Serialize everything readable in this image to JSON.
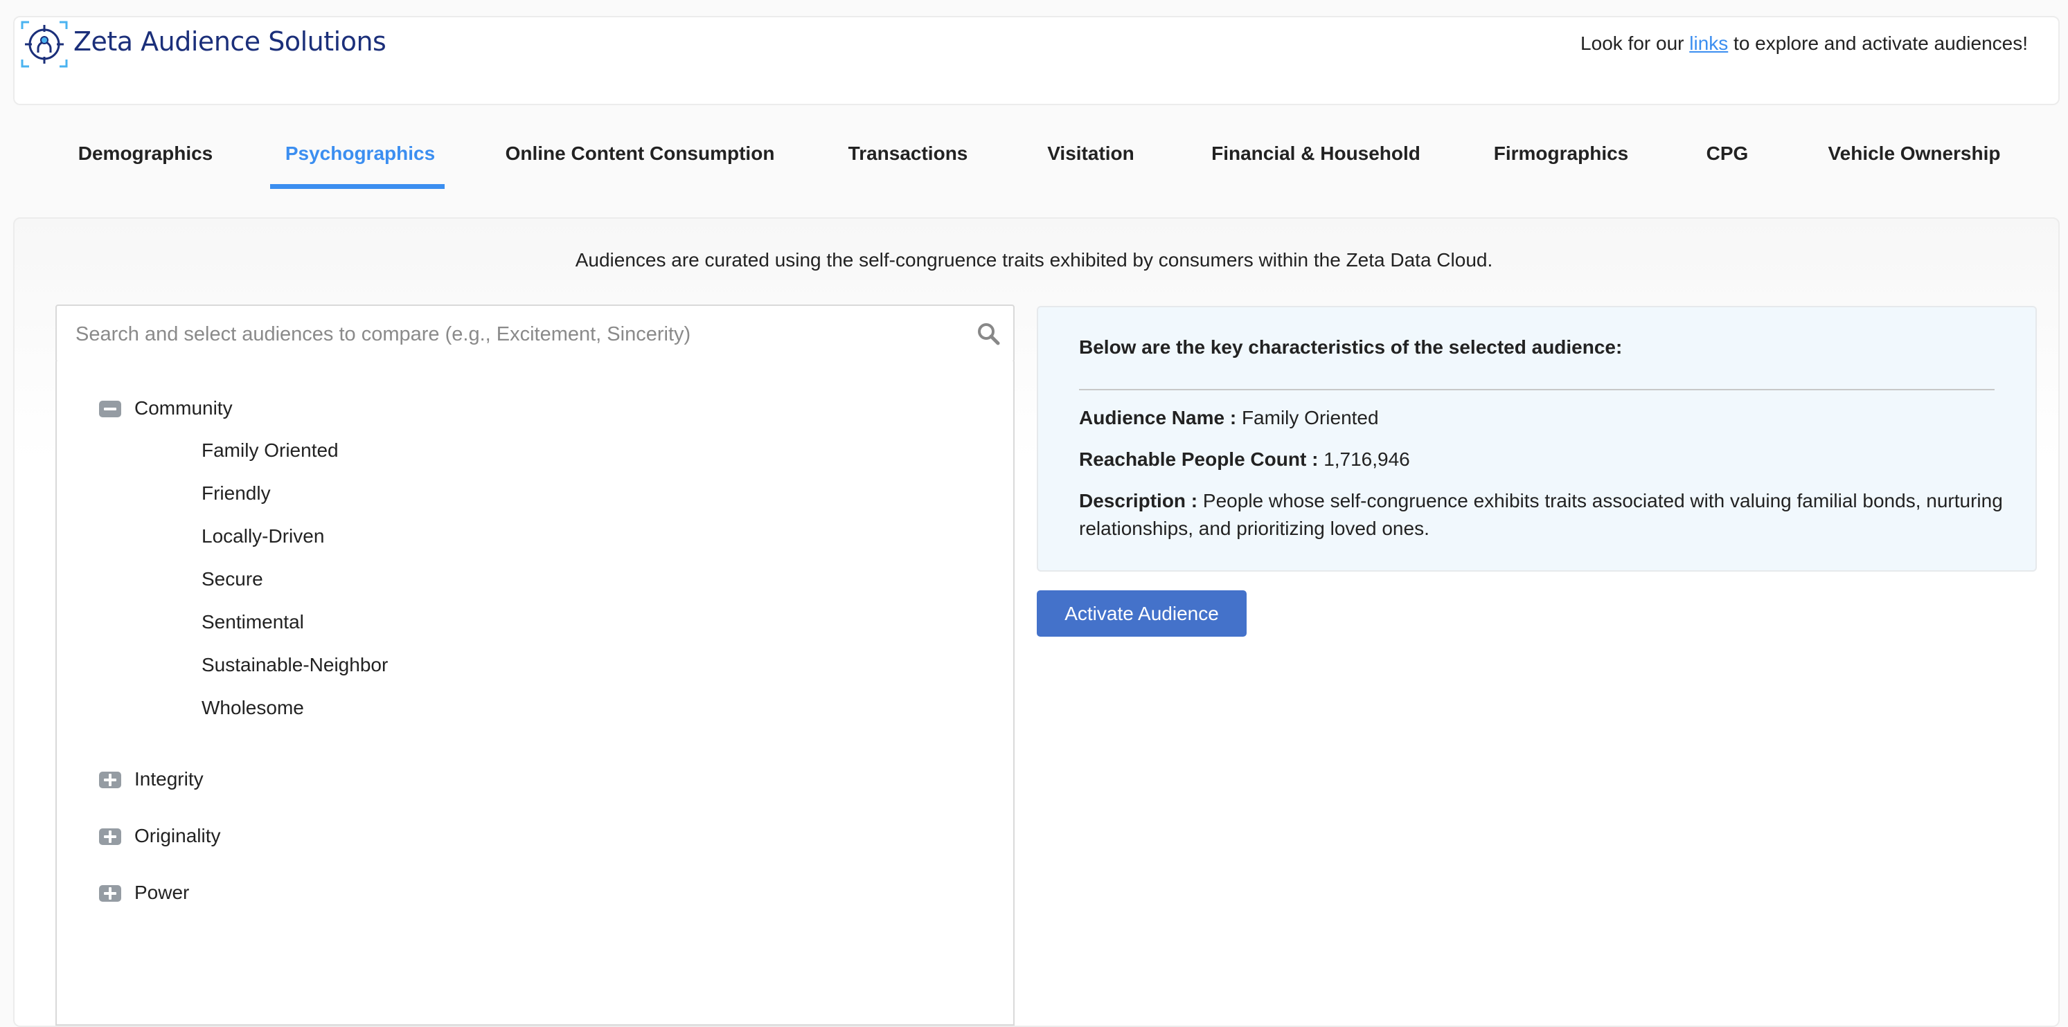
{
  "header": {
    "brand": "Zeta Audience Solutions",
    "tagline_prefix": "Look for our ",
    "tagline_link": "links",
    "tagline_suffix": " to explore and activate audiences!"
  },
  "tabs": [
    {
      "label": "Demographics",
      "active": false
    },
    {
      "label": "Psychographics",
      "active": true
    },
    {
      "label": "Online Content Consumption",
      "active": false
    },
    {
      "label": "Transactions",
      "active": false
    },
    {
      "label": "Visitation",
      "active": false
    },
    {
      "label": "Financial & Household",
      "active": false
    },
    {
      "label": "Firmographics",
      "active": false
    },
    {
      "label": "CPG",
      "active": false
    },
    {
      "label": "Vehicle Ownership",
      "active": false
    }
  ],
  "intro": "Audiences are curated using the self-congruence traits exhibited by consumers within the Zeta Data Cloud.",
  "search": {
    "placeholder": "Search and select audiences to compare (e.g., Excitement, Sincerity)",
    "value": ""
  },
  "tree": [
    {
      "label": "Community",
      "expanded": true,
      "children": [
        "Family Oriented",
        "Friendly",
        "Locally-Driven",
        "Secure",
        "Sentimental",
        "Sustainable-Neighbor",
        "Wholesome"
      ]
    },
    {
      "label": "Integrity",
      "expanded": false
    },
    {
      "label": "Originality",
      "expanded": false
    },
    {
      "label": "Power",
      "expanded": false
    }
  ],
  "details": {
    "heading": "Below are the key characteristics of the selected audience:",
    "name_label": "Audience Name :",
    "name_value": "Family Oriented",
    "count_label": "Reachable People Count :",
    "count_value": "1,716,946",
    "desc_label": "Description :",
    "desc_line1": "People whose self-congruence exhibits traits associated with valuing familial bonds, nurturing",
    "desc_line2": "relationships, and prioritizing loved ones."
  },
  "activate_label": "Activate Audience",
  "colors": {
    "accent": "#3b8ef0",
    "brand": "#1b2f7a",
    "button": "#4472ca",
    "card_bg": "#f1f8fd"
  }
}
